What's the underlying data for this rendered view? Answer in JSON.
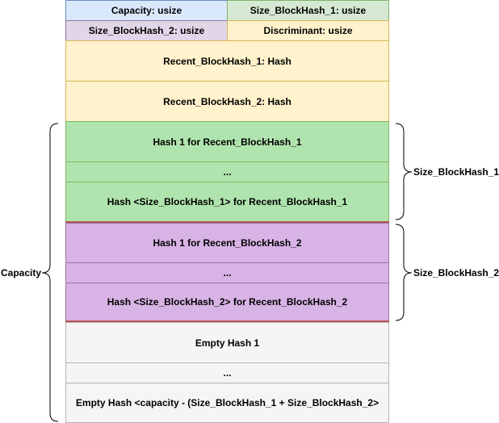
{
  "header_row1": {
    "left": "Capacity: usize",
    "right": "Size_BlockHash_1: usize"
  },
  "header_row2": {
    "left": "Size_BlockHash_2: usize",
    "right": "Discriminant: usize"
  },
  "recent": [
    "Recent_BlockHash_1: Hash",
    "Recent_BlockHash_2: Hash"
  ],
  "group1": [
    "Hash 1 for Recent_BlockHash_1",
    "...",
    "Hash <Size_BlockHash_1> for Recent_BlockHash_1"
  ],
  "group2": [
    "Hash 1 for Recent_BlockHash_2",
    "...",
    "Hash <Size_BlockHash_2> for Recent_BlockHash_2"
  ],
  "empty": [
    "Empty Hash 1",
    "...",
    "Empty Hash <capacity - (Size_BlockHash_1 + Size_BlockHash_2>"
  ],
  "braces": {
    "capacity": "Capacity",
    "size1": "Size_BlockHash_1",
    "size2": "Size_BlockHash_2"
  },
  "colors": {
    "blue": "#dae8fc",
    "green": "#d5e8d4",
    "purple": "#e1d5e7",
    "yellow": "#fff2cc",
    "green_block": "#b0e4ae",
    "purple_block": "#d8b3e6",
    "grey": "#f5f5f5",
    "divider_red": "#b85450"
  }
}
